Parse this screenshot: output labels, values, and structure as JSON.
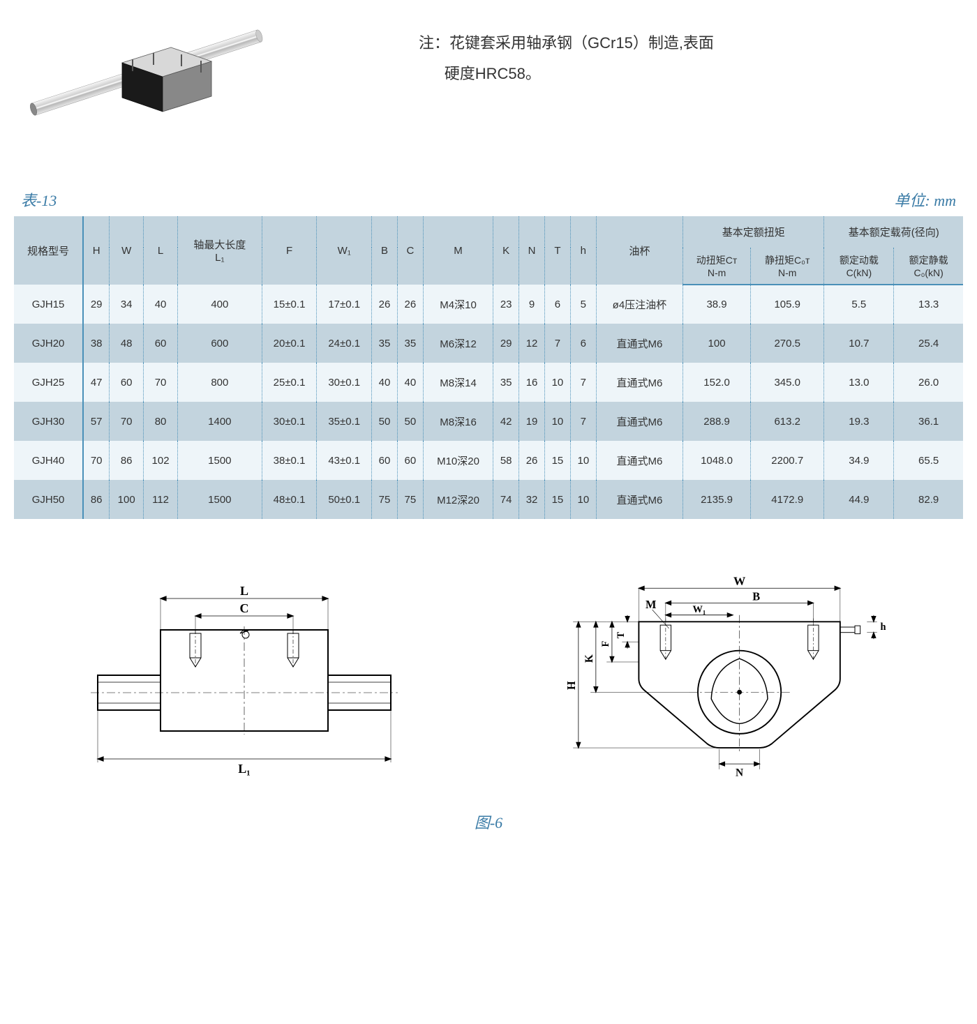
{
  "note": {
    "label": "注：",
    "line1": "花键套采用轴承钢（GCr15）制造,表面",
    "line2": "硬度HRC58。"
  },
  "table": {
    "title": "表-13",
    "unit": "单位: mm",
    "headers": {
      "model": "规格型号",
      "H": "H",
      "W": "W",
      "L": "L",
      "L1_label": "轴最大长度",
      "L1_sub": "L₁",
      "F": "F",
      "W1": "W₁",
      "B": "B",
      "C": "C",
      "M": "M",
      "K": "K",
      "N": "N",
      "T": "T",
      "h": "h",
      "oilcup": "油杯",
      "torque_group": "基本定额扭矩",
      "load_group": "基本额定载荷(径向)",
      "dyn_torque_l1": "动扭矩Cᴛ",
      "dyn_torque_l2": "N-m",
      "stat_torque_l1": "静扭矩C₀ᴛ",
      "stat_torque_l2": "N-m",
      "dyn_load_l1": "额定动载",
      "dyn_load_l2": "C(kN)",
      "stat_load_l1": "额定静载",
      "stat_load_l2": "C₀(kN)"
    },
    "rows": [
      {
        "model": "GJH15",
        "H": "29",
        "W": "34",
        "L": "40",
        "L1": "400",
        "F": "15±0.1",
        "W1": "17±0.1",
        "B": "26",
        "C": "26",
        "M": "M4深10",
        "K": "23",
        "N": "9",
        "T": "6",
        "h": "5",
        "oilcup": "ø4压注油杯",
        "dt": "38.9",
        "st": "105.9",
        "dl": "5.5",
        "sl": "13.3"
      },
      {
        "model": "GJH20",
        "H": "38",
        "W": "48",
        "L": "60",
        "L1": "600",
        "F": "20±0.1",
        "W1": "24±0.1",
        "B": "35",
        "C": "35",
        "M": "M6深12",
        "K": "29",
        "N": "12",
        "T": "7",
        "h": "6",
        "oilcup": "直通式M6",
        "dt": "100",
        "st": "270.5",
        "dl": "10.7",
        "sl": "25.4"
      },
      {
        "model": "GJH25",
        "H": "47",
        "W": "60",
        "L": "70",
        "L1": "800",
        "F": "25±0.1",
        "W1": "30±0.1",
        "B": "40",
        "C": "40",
        "M": "M8深14",
        "K": "35",
        "N": "16",
        "T": "10",
        "h": "7",
        "oilcup": "直通式M6",
        "dt": "152.0",
        "st": "345.0",
        "dl": "13.0",
        "sl": "26.0"
      },
      {
        "model": "GJH30",
        "H": "57",
        "W": "70",
        "L": "80",
        "L1": "1400",
        "F": "30±0.1",
        "W1": "35±0.1",
        "B": "50",
        "C": "50",
        "M": "M8深16",
        "K": "42",
        "N": "19",
        "T": "10",
        "h": "7",
        "oilcup": "直通式M6",
        "dt": "288.9",
        "st": "613.2",
        "dl": "19.3",
        "sl": "36.1"
      },
      {
        "model": "GJH40",
        "H": "70",
        "W": "86",
        "L": "102",
        "L1": "1500",
        "F": "38±0.1",
        "W1": "43±0.1",
        "B": "60",
        "C": "60",
        "M": "M10深20",
        "K": "58",
        "N": "26",
        "T": "15",
        "h": "10",
        "oilcup": "直通式M6",
        "dt": "1048.0",
        "st": "2200.7",
        "dl": "34.9",
        "sl": "65.5"
      },
      {
        "model": "GJH50",
        "H": "86",
        "W": "100",
        "L": "112",
        "L1": "1500",
        "F": "48±0.1",
        "W1": "50±0.1",
        "B": "75",
        "C": "75",
        "M": "M12深20",
        "K": "74",
        "N": "32",
        "T": "15",
        "h": "10",
        "oilcup": "直通式M6",
        "dt": "2135.9",
        "st": "4172.9",
        "dl": "44.9",
        "sl": "82.9"
      }
    ]
  },
  "figure_caption": "图-6",
  "diagram_labels": {
    "L": "L",
    "C": "C",
    "L1": "L₁",
    "W": "W",
    "B": "B",
    "W1": "W₁",
    "M": "M",
    "H": "H",
    "K": "K",
    "F": "F",
    "T": "T",
    "h": "h",
    "N": "N"
  },
  "colors": {
    "accent": "#3a7ba6",
    "header_bg": "#c3d4de",
    "row_even": "#eef5f9",
    "row_odd": "#c3d4de",
    "border_dotted": "#4a90b8",
    "text": "#333333"
  }
}
